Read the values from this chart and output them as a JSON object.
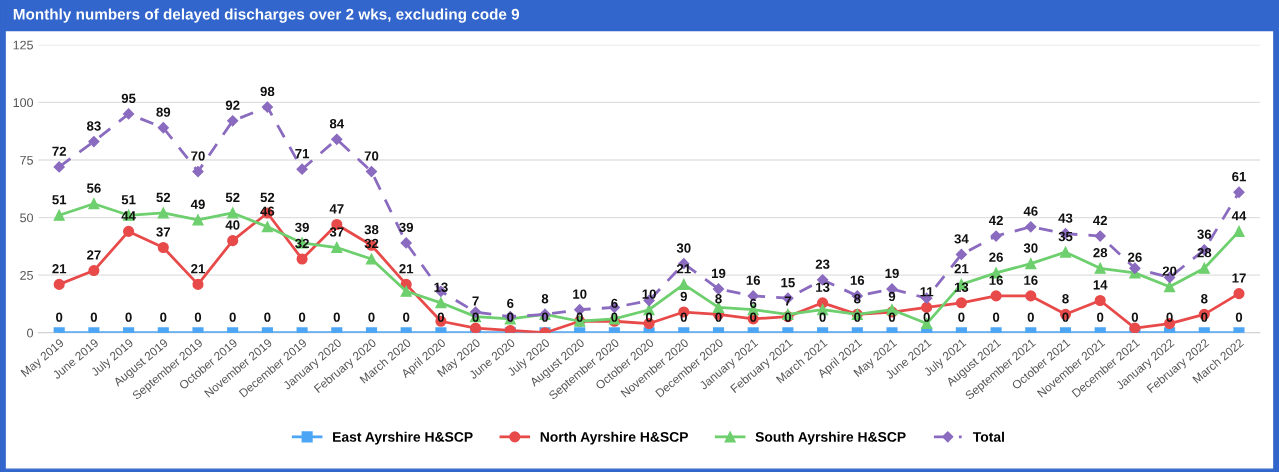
{
  "chart_data": {
    "type": "line",
    "title": "Monthly numbers of delayed discharges over 2 wks, excluding code 9",
    "categories": [
      "May 2019",
      "June 2019",
      "July 2019",
      "August 2019",
      "September 2019",
      "October 2019",
      "November 2019",
      "December 2019",
      "January 2020",
      "February 2020",
      "March 2020",
      "April 2020",
      "May 2020",
      "June 2020",
      "July 2020",
      "August 2020",
      "September 2020",
      "October 2020",
      "November 2020",
      "December 2020",
      "January 2021",
      "February 2021",
      "March 2021",
      "April 2021",
      "May 2021",
      "June 2021",
      "July 2021",
      "August 2021",
      "September 2021",
      "October 2021",
      "November 2021",
      "December 2021",
      "January 2022",
      "February 2022",
      "March 2022"
    ],
    "ylim": [
      0,
      125
    ],
    "yticks": [
      0,
      25,
      50,
      75,
      100,
      125
    ],
    "grid": "y",
    "legend": "bottom",
    "series": [
      {
        "name": "East Ayrshire H&SCP",
        "color": "#4da6f5",
        "marker": "square",
        "line_style": "solid",
        "values": [
          0,
          0,
          0,
          0,
          0,
          0,
          0,
          0,
          0,
          0,
          0,
          0,
          0,
          0,
          0,
          0,
          0,
          0,
          0,
          0,
          0,
          0,
          0,
          0,
          0,
          0,
          0,
          0,
          0,
          0,
          0,
          0,
          0,
          0,
          0
        ],
        "value_labels": [
          "0",
          "0",
          "0",
          "0",
          "0",
          "0",
          "0",
          "0",
          "0",
          "0",
          "0",
          "0",
          "0",
          "0",
          "0",
          "0",
          "0",
          "0",
          "0",
          "0",
          "0",
          "0",
          "0",
          "0",
          "0",
          "0",
          "0",
          "0",
          "0",
          "0",
          "0",
          "0",
          "0",
          "0",
          "0"
        ]
      },
      {
        "name": "North Ayrshire H&SCP",
        "color": "#e84a4a",
        "marker": "circle",
        "line_style": "solid",
        "values": [
          21,
          27,
          44,
          37,
          21,
          40,
          52,
          32,
          47,
          38,
          21,
          5,
          2,
          1,
          0,
          5,
          5,
          4,
          9,
          8,
          6,
          7,
          13,
          8,
          9,
          11,
          13,
          16,
          16,
          8,
          14,
          2,
          4,
          8,
          17
        ],
        "value_labels": [
          "21",
          "27",
          "44",
          "37",
          "21",
          "40",
          "52",
          "32",
          "47",
          "38",
          "21",
          null,
          null,
          null,
          null,
          null,
          null,
          null,
          "9",
          "8",
          "6",
          "7",
          "13",
          "8",
          "9",
          "11",
          "13",
          "16",
          "16",
          "8",
          "14",
          null,
          null,
          "8",
          "17"
        ]
      },
      {
        "name": "South Ayrshire H&SCP",
        "color": "#6dcf6d",
        "marker": "triangle",
        "line_style": "solid",
        "values": [
          51,
          56,
          51,
          52,
          49,
          52,
          46,
          39,
          37,
          32,
          18,
          13,
          7,
          6,
          8,
          5,
          6,
          10,
          21,
          11,
          10,
          8,
          10,
          8,
          10,
          4,
          21,
          26,
          30,
          35,
          28,
          26,
          20,
          28,
          44
        ],
        "value_labels": [
          "51",
          "56",
          "51",
          "52",
          "49",
          "52",
          "46",
          "39",
          "37",
          "32",
          null,
          "13",
          "7",
          "6",
          null,
          null,
          "6",
          "10",
          "21",
          null,
          null,
          null,
          null,
          null,
          null,
          null,
          "21",
          "26",
          "30",
          "35",
          "28",
          "26",
          "20",
          "28",
          "44"
        ]
      },
      {
        "name": "Total",
        "color": "#8a6bbf",
        "marker": "diamond",
        "line_style": "dashed",
        "values": [
          72,
          83,
          95,
          89,
          70,
          92,
          98,
          71,
          84,
          70,
          39,
          18,
          9,
          7,
          8,
          10,
          11,
          14,
          30,
          19,
          16,
          15,
          23,
          16,
          19,
          15,
          34,
          42,
          46,
          43,
          42,
          28,
          24,
          36,
          61
        ],
        "value_labels": [
          "72",
          "83",
          "95",
          "89",
          "70",
          "92",
          "98",
          "71",
          "84",
          "70",
          "39",
          null,
          null,
          null,
          "8",
          "10",
          null,
          null,
          "30",
          "19",
          "16",
          "15",
          "23",
          "16",
          "19",
          null,
          "34",
          "42",
          "46",
          "43",
          "42",
          null,
          null,
          "36",
          "61"
        ]
      }
    ]
  }
}
